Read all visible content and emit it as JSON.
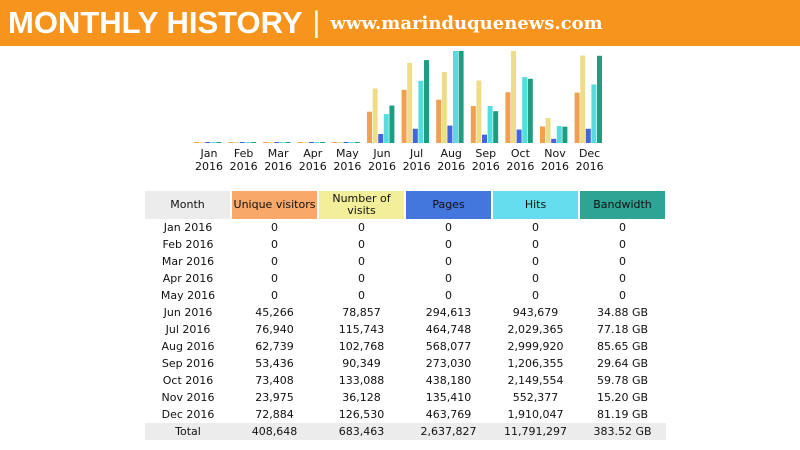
{
  "header": {
    "title": "MONTHLY HISTORY",
    "separator": "|",
    "site": "www.marinduquenews.com"
  },
  "chart_data": {
    "type": "bar",
    "categories": [
      "Jan 2016",
      "Feb 2016",
      "Mar 2016",
      "Apr 2016",
      "May 2016",
      "Jun 2016",
      "Jul 2016",
      "Aug 2016",
      "Sep 2016",
      "Oct 2016",
      "Nov 2016",
      "Dec 2016"
    ],
    "series": [
      {
        "name": "Unique visitors",
        "color": "#f0a050",
        "values": [
          0,
          0,
          0,
          0,
          0,
          45266,
          76940,
          62739,
          53436,
          73408,
          23975,
          72884
        ]
      },
      {
        "name": "Number of visits",
        "color": "#eedd88",
        "values": [
          0,
          0,
          0,
          0,
          0,
          78857,
          115743,
          102768,
          90349,
          133088,
          36128,
          126530
        ]
      },
      {
        "name": "Pages",
        "color": "#4466dd",
        "values": [
          0,
          0,
          0,
          0,
          0,
          294613,
          464748,
          568077,
          273030,
          438180,
          135410,
          463769
        ]
      },
      {
        "name": "Hits",
        "color": "#55dddd",
        "values": [
          0,
          0,
          0,
          0,
          0,
          943679,
          2029365,
          2999920,
          1206355,
          2149554,
          552377,
          1910047
        ]
      },
      {
        "name": "Bandwidth",
        "color": "#1e9e80",
        "values": [
          0,
          0,
          0,
          0,
          0,
          34.88,
          77.18,
          85.65,
          29.64,
          59.78,
          15.2,
          81.19
        ]
      }
    ]
  },
  "table": {
    "columns": [
      "Month",
      "Unique visitors",
      "Number of visits",
      "Pages",
      "Hits",
      "Bandwidth"
    ],
    "rows": [
      [
        "Jan 2016",
        "0",
        "0",
        "0",
        "0",
        "0"
      ],
      [
        "Feb 2016",
        "0",
        "0",
        "0",
        "0",
        "0"
      ],
      [
        "Mar 2016",
        "0",
        "0",
        "0",
        "0",
        "0"
      ],
      [
        "Apr 2016",
        "0",
        "0",
        "0",
        "0",
        "0"
      ],
      [
        "May 2016",
        "0",
        "0",
        "0",
        "0",
        "0"
      ],
      [
        "Jun 2016",
        "45,266",
        "78,857",
        "294,613",
        "943,679",
        "34.88 GB"
      ],
      [
        "Jul 2016",
        "76,940",
        "115,743",
        "464,748",
        "2,029,365",
        "77.18 GB"
      ],
      [
        "Aug 2016",
        "62,739",
        "102,768",
        "568,077",
        "2,999,920",
        "85.65 GB"
      ],
      [
        "Sep 2016",
        "53,436",
        "90,349",
        "273,030",
        "1,206,355",
        "29.64 GB"
      ],
      [
        "Oct 2016",
        "73,408",
        "133,088",
        "438,180",
        "2,149,554",
        "59.78 GB"
      ],
      [
        "Nov 2016",
        "23,975",
        "36,128",
        "135,410",
        "552,377",
        "15.20 GB"
      ],
      [
        "Dec 2016",
        "72,884",
        "126,530",
        "463,769",
        "1,910,047",
        "81.19 GB"
      ]
    ],
    "total": [
      "Total",
      "408,648",
      "683,463",
      "2,637,827",
      "11,791,297",
      "383.52 GB"
    ]
  }
}
